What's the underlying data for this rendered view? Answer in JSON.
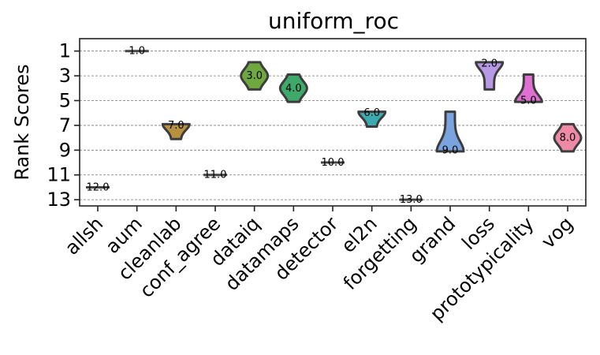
{
  "chart_data": {
    "type": "violin",
    "title": "uniform_roc",
    "xlabel": "",
    "ylabel": "Rank Scores",
    "y_inverted": true,
    "ylim": [
      0.0,
      13.5
    ],
    "yticks": [
      1,
      3,
      5,
      7,
      9,
      11,
      13
    ],
    "grid": "horizontal dashed",
    "categories": [
      "allsh",
      "aum",
      "cleanlab",
      "conf_agree",
      "dataiq",
      "datamaps",
      "detector",
      "el2n",
      "forgetting",
      "grand",
      "loss",
      "prototypicality",
      "vog"
    ],
    "series": [
      {
        "category": "allsh",
        "median_label": "12.0",
        "median": 12,
        "min": 12,
        "max": 12,
        "color": "#7f7f7f"
      },
      {
        "category": "aum",
        "median_label": "1.0",
        "median": 1,
        "min": 1,
        "max": 1,
        "color": "#7f7f7f"
      },
      {
        "category": "cleanlab",
        "median_label": "7.0",
        "median": 7,
        "min": 7,
        "max": 8,
        "color": "#b8913f"
      },
      {
        "category": "conf_agree",
        "median_label": "11.0",
        "median": 11,
        "min": 11,
        "max": 11,
        "color": "#7f7f7f"
      },
      {
        "category": "dataiq",
        "median_label": "3.0",
        "median": 3,
        "min": 2,
        "max": 4,
        "color": "#6fa83e"
      },
      {
        "category": "datamaps",
        "median_label": "4.0",
        "median": 4,
        "min": 3,
        "max": 5,
        "color": "#3fa96b"
      },
      {
        "category": "detector",
        "median_label": "10.0",
        "median": 10,
        "min": 10,
        "max": 10,
        "color": "#7f7f7f"
      },
      {
        "category": "el2n",
        "median_label": "6.0",
        "median": 6,
        "min": 6,
        "max": 7,
        "color": "#3aabb0"
      },
      {
        "category": "forgetting",
        "median_label": "13.0",
        "median": 13,
        "min": 13,
        "max": 13,
        "color": "#7f7f7f"
      },
      {
        "category": "grand",
        "median_label": "9.0",
        "median": 9,
        "min": 6,
        "max": 9,
        "color": "#7aa4e0"
      },
      {
        "category": "loss",
        "median_label": "2.0",
        "median": 2,
        "min": 2,
        "max": 4,
        "color": "#b79ae6"
      },
      {
        "category": "prototypicality",
        "median_label": "5.0",
        "median": 5,
        "min": 3,
        "max": 5,
        "color": "#e06fd2"
      },
      {
        "category": "vog",
        "median_label": "8.0",
        "median": 8,
        "min": 7,
        "max": 9,
        "color": "#ee8aa6"
      }
    ]
  }
}
